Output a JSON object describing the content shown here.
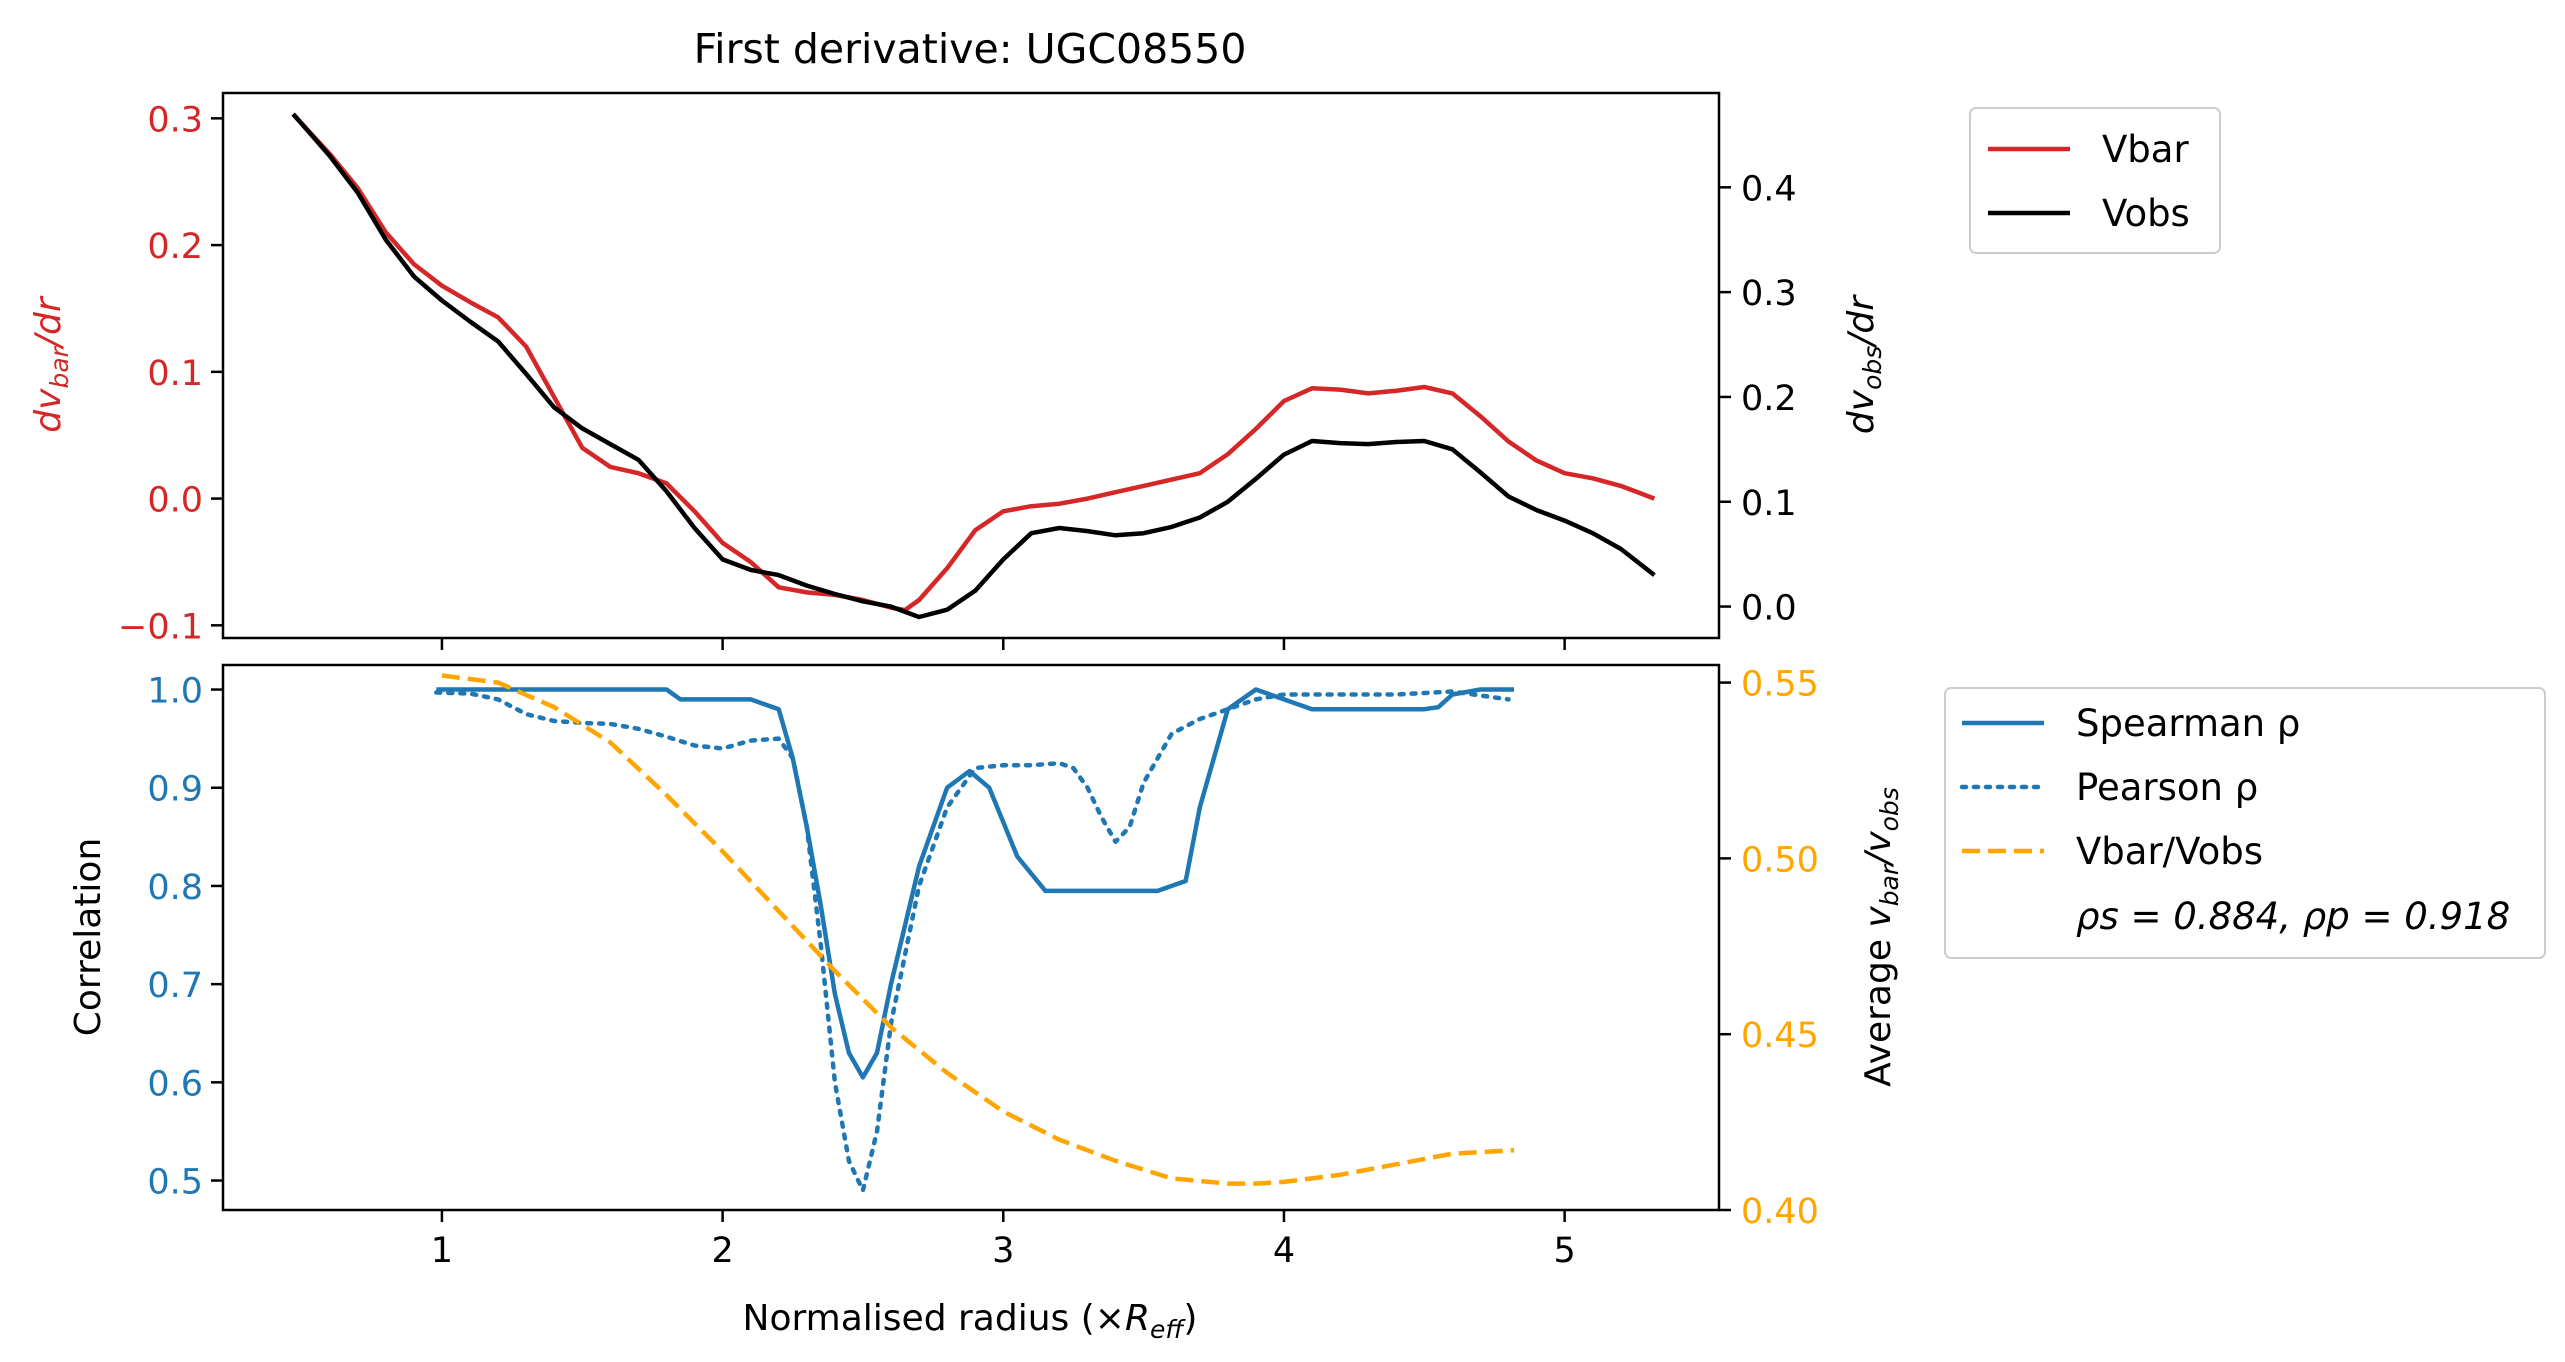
{
  "chart_data": [
    {
      "type": "line",
      "title": "First derivative: UGC08550",
      "ylabel_left": "dv_bar/dr",
      "ylabel_right": "dv_obs/dr",
      "ylim_left": [
        -0.11,
        0.32
      ],
      "ylim_right": [
        -0.03,
        0.49
      ],
      "xlim": [
        0.22,
        5.55
      ],
      "yticks_left": [
        -0.1,
        0.0,
        0.1,
        0.2,
        0.3
      ],
      "ytick_labels_left": [
        "−0.1",
        "0.0",
        "0.1",
        "0.2",
        "0.3"
      ],
      "yticks_right": [
        0.0,
        0.1,
        0.2,
        0.3,
        0.4
      ],
      "ytick_labels_right": [
        "0.0",
        "0.1",
        "0.2",
        "0.3",
        "0.4"
      ],
      "xticks": [
        1,
        2,
        3,
        4,
        5
      ],
      "legend_placement": "outside upper right",
      "series": [
        {
          "name": "Vbar",
          "axis": "left",
          "color": "#d62728",
          "x": [
            0.47,
            0.6,
            0.7,
            0.8,
            0.9,
            1.0,
            1.1,
            1.2,
            1.3,
            1.4,
            1.5,
            1.6,
            1.7,
            1.8,
            1.9,
            2.0,
            2.1,
            2.2,
            2.3,
            2.4,
            2.5,
            2.6,
            2.65,
            2.7,
            2.8,
            2.9,
            3.0,
            3.1,
            3.2,
            3.3,
            3.4,
            3.5,
            3.6,
            3.7,
            3.8,
            3.9,
            4.0,
            4.1,
            4.2,
            4.3,
            4.4,
            4.5,
            4.6,
            4.7,
            4.8,
            4.9,
            5.0,
            5.1,
            5.2,
            5.32
          ],
          "values": [
            0.303,
            0.272,
            0.245,
            0.21,
            0.185,
            0.168,
            0.155,
            0.143,
            0.12,
            0.08,
            0.04,
            0.025,
            0.02,
            0.012,
            -0.01,
            -0.035,
            -0.05,
            -0.07,
            -0.074,
            -0.076,
            -0.08,
            -0.086,
            -0.088,
            -0.08,
            -0.055,
            -0.025,
            -0.01,
            -0.006,
            -0.004,
            0.0,
            0.005,
            0.01,
            0.015,
            0.02,
            0.035,
            0.055,
            0.077,
            0.087,
            0.086,
            0.083,
            0.085,
            0.088,
            0.083,
            0.065,
            0.045,
            0.03,
            0.02,
            0.016,
            0.01,
            0.0
          ]
        },
        {
          "name": "Vobs",
          "axis": "right",
          "color": "#000000",
          "x": [
            0.47,
            0.6,
            0.7,
            0.8,
            0.9,
            1.0,
            1.1,
            1.2,
            1.3,
            1.4,
            1.5,
            1.6,
            1.7,
            1.8,
            1.9,
            2.0,
            2.1,
            2.2,
            2.3,
            2.4,
            2.5,
            2.6,
            2.7,
            2.8,
            2.9,
            3.0,
            3.1,
            3.2,
            3.3,
            3.4,
            3.5,
            3.6,
            3.7,
            3.8,
            3.9,
            4.0,
            4.1,
            4.2,
            4.3,
            4.4,
            4.5,
            4.6,
            4.7,
            4.8,
            4.9,
            5.0,
            5.1,
            5.2,
            5.32
          ],
          "values": [
            0.47,
            0.43,
            0.395,
            0.35,
            0.315,
            0.292,
            0.272,
            0.253,
            0.222,
            0.19,
            0.17,
            0.155,
            0.14,
            0.11,
            0.075,
            0.045,
            0.035,
            0.03,
            0.02,
            0.012,
            0.005,
            0.0,
            -0.01,
            -0.003,
            0.015,
            0.045,
            0.07,
            0.075,
            0.072,
            0.068,
            0.07,
            0.076,
            0.085,
            0.1,
            0.122,
            0.145,
            0.158,
            0.156,
            0.155,
            0.157,
            0.158,
            0.15,
            0.128,
            0.105,
            0.092,
            0.082,
            0.07,
            0.055,
            0.03
          ]
        }
      ]
    },
    {
      "type": "line",
      "xlabel": "Normalised radius (×R_eff)",
      "ylabel_left": "Correlation",
      "ylabel_right": "Average v_bar/v_obs",
      "ylim_left": [
        0.47,
        1.025
      ],
      "ylim_right": [
        0.4,
        0.555
      ],
      "xlim": [
        0.22,
        5.55
      ],
      "yticks_left": [
        0.5,
        0.6,
        0.7,
        0.8,
        0.9,
        1.0
      ],
      "ytick_labels_left": [
        "0.5",
        "0.6",
        "0.7",
        "0.8",
        "0.9",
        "1.0"
      ],
      "yticks_right": [
        0.4,
        0.45,
        0.5,
        0.55
      ],
      "ytick_labels_right": [
        "0.40",
        "0.45",
        "0.50",
        "0.55"
      ],
      "xticks": [
        1,
        2,
        3,
        4,
        5
      ],
      "xtick_labels": [
        "1",
        "2",
        "3",
        "4",
        "5"
      ],
      "legend_placement": "outside upper right",
      "annotation": "ρs = 0.884, ρp = 0.918",
      "series": [
        {
          "name": "Spearman ρ",
          "axis": "left",
          "color": "#1f77b4",
          "style": "solid",
          "x": [
            0.98,
            1.2,
            1.4,
            1.6,
            1.8,
            1.85,
            1.95,
            2.1,
            2.2,
            2.25,
            2.3,
            2.35,
            2.4,
            2.45,
            2.5,
            2.55,
            2.6,
            2.7,
            2.8,
            2.88,
            2.95,
            3.05,
            3.15,
            3.3,
            3.45,
            3.55,
            3.6,
            3.65,
            3.7,
            3.8,
            3.9,
            4.0,
            4.1,
            4.2,
            4.3,
            4.4,
            4.5,
            4.55,
            4.6,
            4.7,
            4.82
          ],
          "values": [
            1.0,
            1.0,
            1.0,
            1.0,
            1.0,
            0.99,
            0.99,
            0.99,
            0.98,
            0.93,
            0.86,
            0.78,
            0.69,
            0.63,
            0.605,
            0.63,
            0.7,
            0.82,
            0.9,
            0.917,
            0.9,
            0.83,
            0.795,
            0.795,
            0.795,
            0.795,
            0.8,
            0.805,
            0.88,
            0.98,
            1.0,
            0.99,
            0.98,
            0.98,
            0.98,
            0.98,
            0.98,
            0.982,
            0.995,
            1.0,
            1.0
          ]
        },
        {
          "name": "Pearson ρ",
          "axis": "left",
          "color": "#1f77b4",
          "style": "dotted",
          "x": [
            0.98,
            1.1,
            1.2,
            1.3,
            1.4,
            1.5,
            1.6,
            1.7,
            1.8,
            1.9,
            2.0,
            2.1,
            2.2,
            2.25,
            2.3,
            2.35,
            2.4,
            2.45,
            2.5,
            2.55,
            2.6,
            2.7,
            2.8,
            2.9,
            3.0,
            3.1,
            3.2,
            3.25,
            3.3,
            3.35,
            3.4,
            3.45,
            3.5,
            3.6,
            3.7,
            3.8,
            3.9,
            4.0,
            4.2,
            4.4,
            4.6,
            4.8
          ],
          "values": [
            0.997,
            0.996,
            0.99,
            0.975,
            0.968,
            0.966,
            0.965,
            0.96,
            0.952,
            0.943,
            0.94,
            0.948,
            0.95,
            0.93,
            0.86,
            0.74,
            0.6,
            0.52,
            0.49,
            0.55,
            0.66,
            0.8,
            0.88,
            0.92,
            0.923,
            0.923,
            0.925,
            0.92,
            0.9,
            0.87,
            0.845,
            0.86,
            0.905,
            0.955,
            0.97,
            0.98,
            0.99,
            0.995,
            0.995,
            0.995,
            0.998,
            0.99
          ]
        },
        {
          "name": "Vbar/Vobs",
          "axis": "right",
          "color": "#ffa500",
          "style": "dashed",
          "x": [
            1.0,
            1.2,
            1.4,
            1.6,
            1.8,
            2.0,
            2.2,
            2.4,
            2.6,
            2.8,
            3.0,
            3.2,
            3.4,
            3.6,
            3.8,
            3.9,
            4.0,
            4.2,
            4.4,
            4.6,
            4.82
          ],
          "values": [
            0.552,
            0.55,
            0.543,
            0.533,
            0.518,
            0.502,
            0.485,
            0.468,
            0.452,
            0.439,
            0.428,
            0.42,
            0.414,
            0.409,
            0.4075,
            0.4075,
            0.408,
            0.41,
            0.413,
            0.416,
            0.417
          ]
        }
      ]
    }
  ]
}
